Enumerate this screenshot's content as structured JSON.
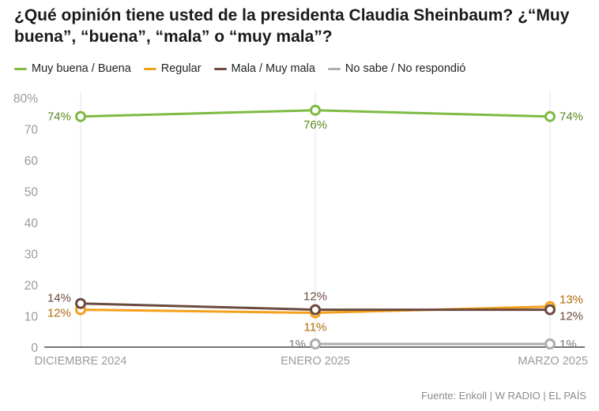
{
  "title": "¿Qué opinión tiene usted de la presidenta Claudia Sheinbaum? ¿“Muy buena”, “buena”, “mala” o “muy mala”?",
  "source": "Fuente: Enkoll | W RADIO | EL PAÍS",
  "chart_data": {
    "type": "line",
    "title": "¿Qué opinión tiene usted de la presidenta Claudia Sheinbaum? ¿“Muy buena”, “buena”, “mala” o “muy mala”?",
    "categories": [
      "DICIEMBRE 2024",
      "ENERO 2025",
      "MARZO 2025"
    ],
    "ylim": [
      0,
      80
    ],
    "yticks": [
      0,
      10,
      20,
      30,
      40,
      50,
      60,
      70,
      80
    ],
    "ytick_labels": [
      "0",
      "10",
      "20",
      "30",
      "40",
      "50",
      "60",
      "70",
      "80%"
    ],
    "grid": "vertical",
    "legend_position": "top-left",
    "series": [
      {
        "name": "Muy buena / Buena",
        "color": "#7dbb42",
        "label_color": "#5a8a22",
        "values": [
          74,
          76,
          74
        ],
        "labels": [
          "74%",
          "76%",
          "74%"
        ],
        "label_pos": [
          "left",
          "below",
          "right"
        ]
      },
      {
        "name": "Regular",
        "color": "#f5a01a",
        "label_color": "#b06c0a",
        "values": [
          12,
          11,
          13
        ],
        "labels": [
          "12%",
          "11%",
          "13%"
        ],
        "label_pos": [
          "left",
          "below",
          "right-up"
        ]
      },
      {
        "name": "Mala / Muy mala",
        "color": "#6b4a3e",
        "label_color": "#6b4a3e",
        "values": [
          14,
          12,
          12
        ],
        "labels": [
          "14%",
          "12%",
          "12%"
        ],
        "label_pos": [
          "left",
          "above",
          "right-down"
        ]
      },
      {
        "name": "No sabe / No respondió",
        "color": "#a8afac",
        "label_color": "#777777",
        "values": [
          null,
          1,
          1
        ],
        "labels": [
          "",
          "1%",
          "1%"
        ],
        "label_pos": [
          "",
          "left",
          "right"
        ]
      }
    ]
  }
}
